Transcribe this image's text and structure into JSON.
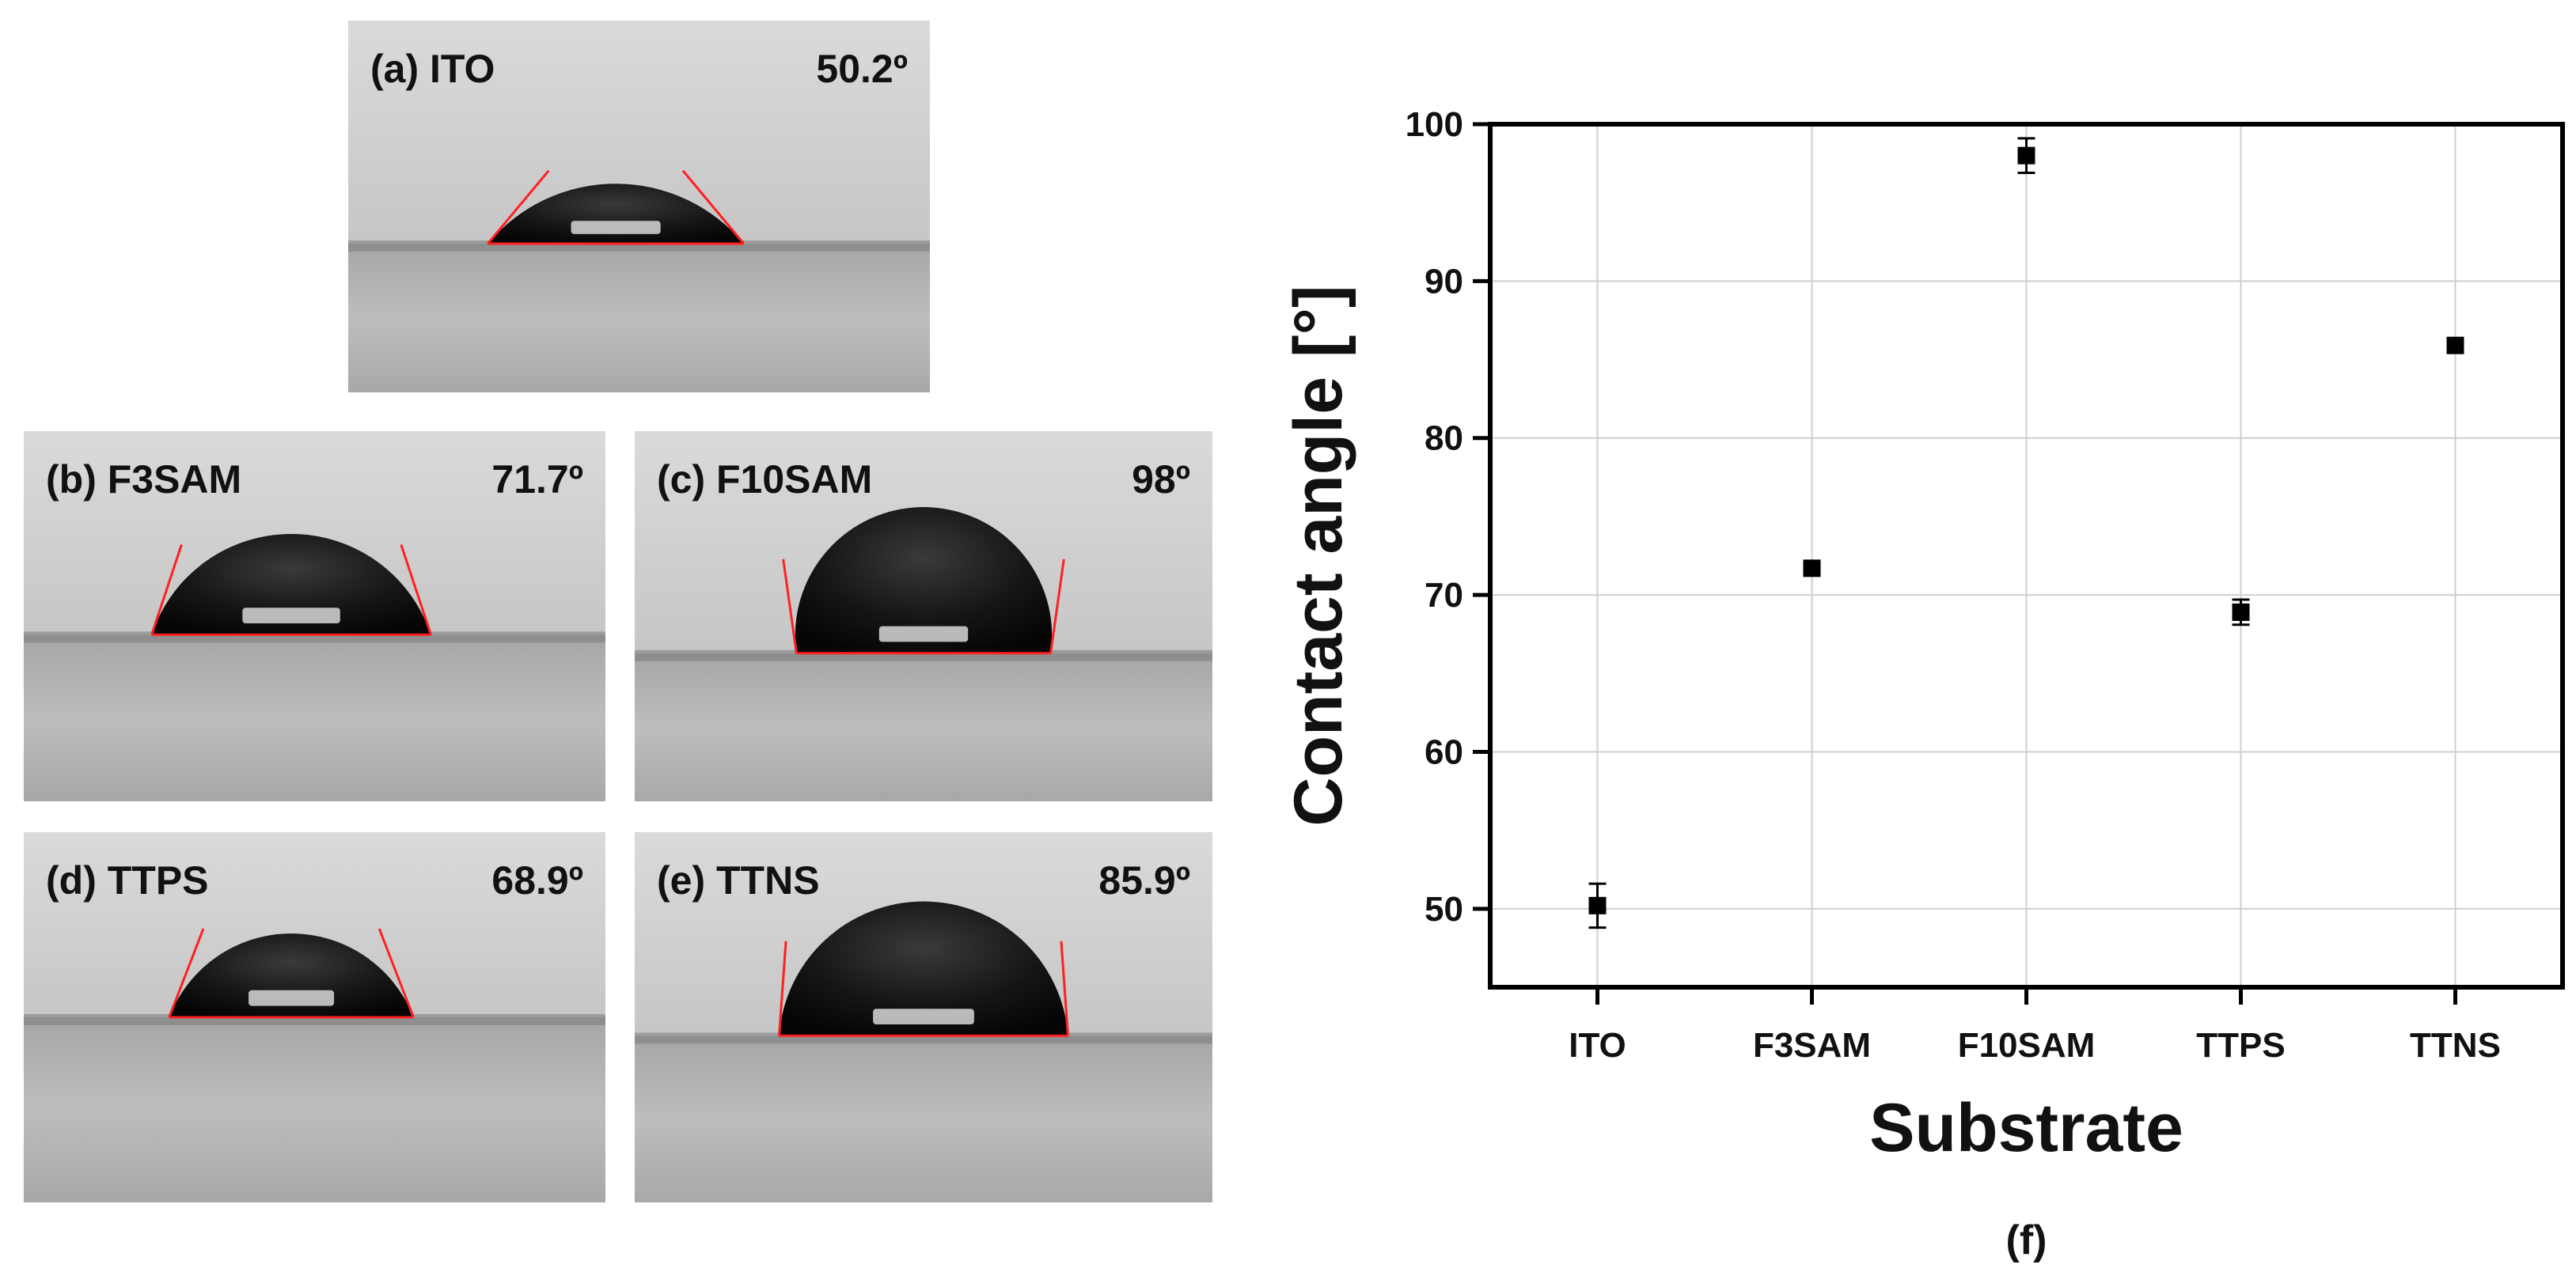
{
  "panels": [
    {
      "tag": "(a)",
      "name": "ITO",
      "angle": "50.2º",
      "contact_angle_deg": 50.2
    },
    {
      "tag": "(b)",
      "name": "F3SAM",
      "angle": "71.7º",
      "contact_angle_deg": 71.7
    },
    {
      "tag": "(c)",
      "name": "F10SAM",
      "angle": "98º",
      "contact_angle_deg": 98
    },
    {
      "tag": "(d)",
      "name": "TTPS",
      "angle": "68.9º",
      "contact_angle_deg": 68.9
    },
    {
      "tag": "(e)",
      "name": "TTNS",
      "angle": "85.9º",
      "contact_angle_deg": 85.9
    }
  ],
  "chart_data": {
    "type": "scatter",
    "categories": [
      "ITO",
      "F3SAM",
      "F10SAM",
      "TTPS",
      "TTNS"
    ],
    "values": [
      50.2,
      71.7,
      98.0,
      68.9,
      85.9
    ],
    "errors": [
      1.4,
      0.3,
      1.1,
      0.8,
      0.3
    ],
    "xlabel": "Substrate",
    "ylabel": "Contact angle [°]",
    "ylim": [
      45,
      100
    ],
    "yticks": [
      50,
      60,
      70,
      80,
      90,
      100
    ],
    "grid": true,
    "marker": "square",
    "colors": {
      "marker": "#000000",
      "grid": "#cfcfcf",
      "fit_line": "#ff2020"
    }
  },
  "figure_label": "(f)"
}
